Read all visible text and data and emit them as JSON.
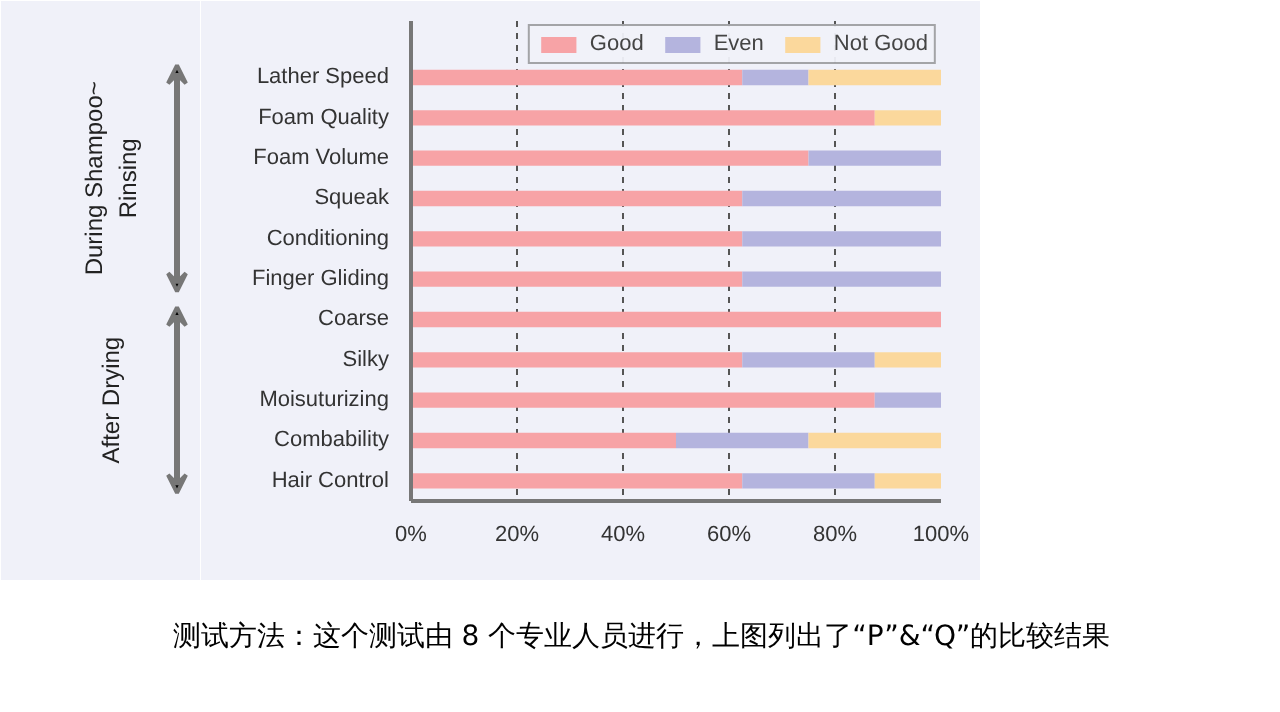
{
  "chart_data": {
    "type": "bar",
    "orientation": "horizontal",
    "stacked": true,
    "categories": [
      "Lather Speed",
      "Foam Quality",
      "Foam Volume",
      "Squeak",
      "Conditioning",
      "Finger Gliding",
      "Coarse",
      "Silky",
      "Moisuturizing",
      "Combability",
      "Hair Control"
    ],
    "series": [
      {
        "name": "Good",
        "color": "#f7a3a6",
        "values": [
          62.5,
          87.5,
          75,
          62.5,
          62.5,
          62.5,
          100,
          62.5,
          87.5,
          50,
          62.5
        ]
      },
      {
        "name": "Even",
        "color": "#b4b4de",
        "values": [
          12.5,
          0,
          25,
          37.5,
          37.5,
          37.5,
          0,
          25,
          12.5,
          25,
          25
        ]
      },
      {
        "name": "Not Good",
        "color": "#fbd89c",
        "values": [
          25,
          12.5,
          0,
          0,
          0,
          0,
          0,
          12.5,
          0,
          25,
          12.5
        ]
      }
    ],
    "xlim": [
      0,
      100
    ],
    "xticks": [
      {
        "value": 0,
        "label": "0%"
      },
      {
        "value": 20,
        "label": "20%"
      },
      {
        "value": 40,
        "label": "40%"
      },
      {
        "value": 60,
        "label": "60%"
      },
      {
        "value": 80,
        "label": "80%"
      },
      {
        "value": 100,
        "label": "100%"
      }
    ],
    "grid": "x",
    "legend": "top right",
    "annotations": [
      "During Shampoo~\nRinsing",
      "After Drying",
      "测试方法：这个测试由 8 个专业人员进行，上图列出了“P”&“Q”的比较结果"
    ]
  }
}
